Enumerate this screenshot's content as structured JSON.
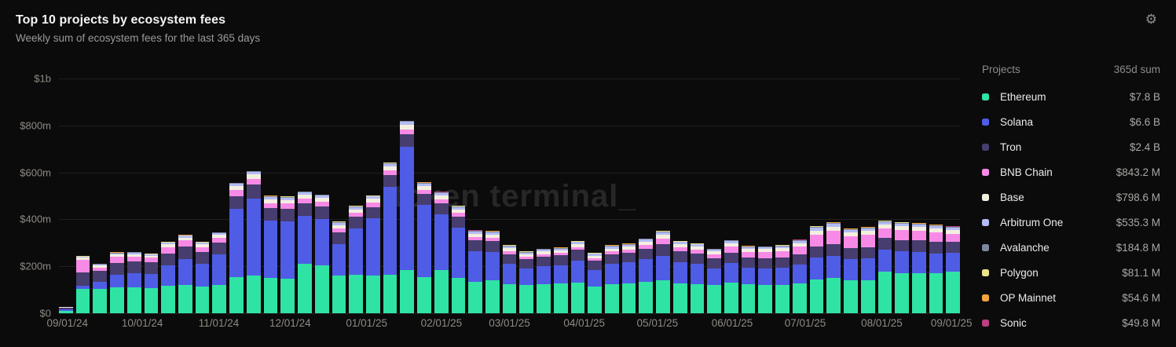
{
  "header": {
    "title": "Top 10 projects by ecosystem fees",
    "subtitle": "Weekly sum of ecosystem fees for the last 365 days"
  },
  "icons": {
    "gear": "⚙"
  },
  "watermark": "token terminal_",
  "legend": {
    "col_projects": "Projects",
    "col_sum": "365d sum",
    "items": [
      {
        "name": "Ethereum",
        "sum": "$7.8 B",
        "color": "#2fe3a4"
      },
      {
        "name": "Solana",
        "sum": "$6.6 B",
        "color": "#4f5ce6"
      },
      {
        "name": "Tron",
        "sum": "$2.4 B",
        "color": "#473d6e"
      },
      {
        "name": "BNB Chain",
        "sum": "$843.2 M",
        "color": "#f78ae6"
      },
      {
        "name": "Base",
        "sum": "$798.6 M",
        "color": "#f3efdf"
      },
      {
        "name": "Arbitrum One",
        "sum": "$535.3 M",
        "color": "#b3bcf4"
      },
      {
        "name": "Avalanche",
        "sum": "$184.8 M",
        "color": "#7e87a0"
      },
      {
        "name": "Polygon",
        "sum": "$81.1 M",
        "color": "#ebe388"
      },
      {
        "name": "OP Mainnet",
        "sum": "$54.6 M",
        "color": "#f2a33c"
      },
      {
        "name": "Sonic",
        "sum": "$49.8 M",
        "color": "#bb3f82"
      }
    ]
  },
  "chart_data": {
    "type": "bar",
    "stacked": true,
    "title": "Top 10 projects by ecosystem fees",
    "subtitle": "Weekly sum of ecosystem fees for the last 365 days",
    "unit": "USD millions per week",
    "ylim": [
      0,
      1000
    ],
    "grid": true,
    "legend_position": "right",
    "y_ticks": [
      {
        "label": "$1b",
        "value": 1000
      },
      {
        "label": "$800m",
        "value": 800
      },
      {
        "label": "$600m",
        "value": 600
      },
      {
        "label": "$400m",
        "value": 400
      },
      {
        "label": "$200m",
        "value": 200
      },
      {
        "label": "$0",
        "value": 0
      }
    ],
    "x_ticks": [
      {
        "label": "09/01/24",
        "week": 1
      },
      {
        "label": "10/01/24",
        "week": 5.4
      },
      {
        "label": "11/01/24",
        "week": 9.9
      },
      {
        "label": "12/01/24",
        "week": 14.1
      },
      {
        "label": "01/01/25",
        "week": 18.6
      },
      {
        "label": "02/01/25",
        "week": 23.0
      },
      {
        "label": "03/01/25",
        "week": 27.0
      },
      {
        "label": "04/01/25",
        "week": 31.4
      },
      {
        "label": "05/01/25",
        "week": 35.7
      },
      {
        "label": "06/01/25",
        "week": 40.1
      },
      {
        "label": "07/01/25",
        "week": 44.4
      },
      {
        "label": "08/01/25",
        "week": 48.9
      },
      {
        "label": "09/01/25",
        "week": 53.0
      }
    ],
    "weeks": 53,
    "series": [
      {
        "name": "Ethereum",
        "color": "#2fe3a4",
        "values": [
          10,
          103,
          105,
          110,
          112,
          108,
          118,
          120,
          115,
          120,
          155,
          160,
          150,
          148,
          210,
          205,
          160,
          165,
          160,
          165,
          185,
          155,
          185,
          150,
          135,
          140,
          125,
          120,
          125,
          128,
          130,
          115,
          125,
          128,
          135,
          140,
          128,
          125,
          120,
          130,
          125,
          122,
          122,
          128,
          145,
          150,
          140,
          142,
          178,
          172,
          172,
          170,
          178
        ]
      },
      {
        "name": "Solana",
        "color": "#4f5ce6",
        "values": [
          8,
          15,
          30,
          55,
          60,
          60,
          85,
          110,
          95,
          130,
          290,
          330,
          245,
          245,
          205,
          198,
          135,
          195,
          245,
          375,
          525,
          305,
          235,
          215,
          130,
          122,
          85,
          70,
          75,
          77,
          95,
          68,
          85,
          88,
          95,
          105,
          90,
          85,
          72,
          85,
          70,
          70,
          72,
          78,
          92,
          95,
          90,
          92,
          92,
          92,
          90,
          85,
          80
        ]
      },
      {
        "name": "Tron",
        "color": "#473d6e",
        "values": [
          5,
          55,
          45,
          50,
          48,
          48,
          52,
          55,
          50,
          50,
          55,
          58,
          52,
          52,
          52,
          52,
          48,
          50,
          48,
          50,
          52,
          48,
          48,
          46,
          45,
          45,
          42,
          40,
          42,
          41,
          45,
          40,
          42,
          42,
          45,
          48,
          45,
          44,
          42,
          44,
          42,
          42,
          42,
          44,
          48,
          50,
          48,
          48,
          50,
          48,
          48,
          48,
          46
        ]
      },
      {
        "name": "BNB Chain",
        "color": "#f78ae6",
        "values": [
          2,
          55,
          15,
          25,
          22,
          20,
          26,
          25,
          22,
          22,
          25,
          25,
          22,
          22,
          22,
          20,
          18,
          18,
          18,
          20,
          22,
          18,
          18,
          16,
          14,
          14,
          12,
          10,
          10,
          10,
          12,
          10,
          12,
          13,
          16,
          25,
          18,
          18,
          18,
          25,
          25,
          27,
          28,
          35,
          50,
          55,
          50,
          52,
          40,
          42,
          40,
          40,
          35
        ]
      },
      {
        "name": "Base",
        "color": "#f3efdf",
        "values": [
          1.5,
          8,
          8,
          10,
          10,
          9,
          12,
          12,
          11,
          12,
          17,
          18,
          17,
          16,
          16,
          16,
          15,
          15,
          16,
          17,
          20,
          17,
          16,
          16,
          14,
          14,
          13,
          11,
          11,
          11,
          12,
          11,
          12,
          12,
          13,
          17,
          13,
          12,
          11,
          13,
          12,
          12,
          13,
          13,
          17,
          18,
          16,
          16,
          18,
          17,
          17,
          17,
          15
        ]
      },
      {
        "name": "Arbitrum One",
        "color": "#b3bcf4",
        "values": [
          1,
          5,
          5,
          6,
          6,
          5,
          7,
          8,
          7,
          8,
          10,
          11,
          10,
          10,
          10,
          10,
          10,
          10,
          10,
          10,
          11,
          10,
          10,
          10,
          10,
          10,
          9,
          8,
          8,
          8,
          9,
          9,
          9,
          9,
          10,
          11,
          9,
          9,
          8,
          10,
          8,
          8,
          9,
          10,
          13,
          13,
          11,
          11,
          11,
          11,
          11,
          11,
          10
        ]
      },
      {
        "name": "Avalanche",
        "color": "#7e87a0",
        "values": [
          0.3,
          1.5,
          1.5,
          2,
          2,
          2,
          2,
          2,
          2,
          2,
          3,
          3,
          3,
          3,
          3,
          3,
          3,
          3,
          3,
          3,
          3,
          3,
          3,
          3,
          3,
          3,
          3,
          3,
          3,
          3,
          3,
          3,
          3,
          3,
          3,
          3,
          3,
          3,
          3,
          3,
          3,
          3,
          3,
          3,
          4,
          4,
          3.5,
          3.5,
          3.5,
          3.5,
          3.5,
          3.5,
          3.5
        ]
      },
      {
        "name": "Polygon",
        "color": "#ebe388",
        "values": [
          0.2,
          0.8,
          0.8,
          1,
          1,
          1,
          1,
          1,
          1,
          1,
          1,
          1,
          1,
          1,
          1,
          1,
          1,
          1,
          1,
          1,
          1,
          1,
          1,
          1,
          1,
          1,
          1,
          1,
          1,
          1,
          1,
          1,
          1,
          1,
          1,
          1,
          1,
          1,
          1,
          1,
          1,
          1,
          1,
          1,
          1.5,
          1.5,
          1.2,
          1.2,
          1.2,
          1.2,
          1.2,
          1.2,
          1.2
        ]
      },
      {
        "name": "OP Mainnet",
        "color": "#f2a33c",
        "values": [
          0.1,
          0.5,
          0.5,
          0.6,
          0.6,
          0.6,
          0.7,
          0.7,
          0.7,
          0.7,
          0.7,
          0.8,
          0.8,
          0.8,
          0.8,
          0.8,
          0.8,
          0.8,
          0.8,
          0.8,
          0.8,
          0.8,
          0.8,
          0.8,
          0.8,
          0.8,
          0.7,
          0.7,
          0.7,
          0.7,
          0.7,
          0.7,
          0.7,
          0.7,
          0.7,
          0.8,
          0.7,
          0.7,
          0.7,
          0.7,
          0.7,
          0.7,
          0.7,
          0.7,
          0.8,
          0.8,
          0.8,
          0.8,
          0.8,
          0.8,
          0.8,
          0.8,
          0.8
        ]
      },
      {
        "name": "Sonic",
        "color": "#bb3f82",
        "values": [
          0.1,
          0.2,
          0.2,
          0.3,
          0.3,
          0.3,
          0.3,
          0.3,
          0.3,
          0.3,
          0.3,
          0.3,
          0.3,
          0.3,
          0.3,
          0.3,
          0.3,
          0.3,
          0.3,
          0.3,
          0.3,
          0.3,
          0.3,
          0.3,
          0.3,
          0.3,
          0.3,
          0.3,
          0.3,
          0.3,
          0.3,
          0.3,
          0.3,
          0.3,
          0.3,
          0.3,
          0.3,
          0.3,
          0.3,
          0.3,
          0.3,
          0.3,
          0.3,
          0.3,
          0.4,
          0.4,
          0.4,
          0.4,
          0.4,
          0.4,
          0.4,
          0.4,
          0.4
        ]
      }
    ]
  }
}
